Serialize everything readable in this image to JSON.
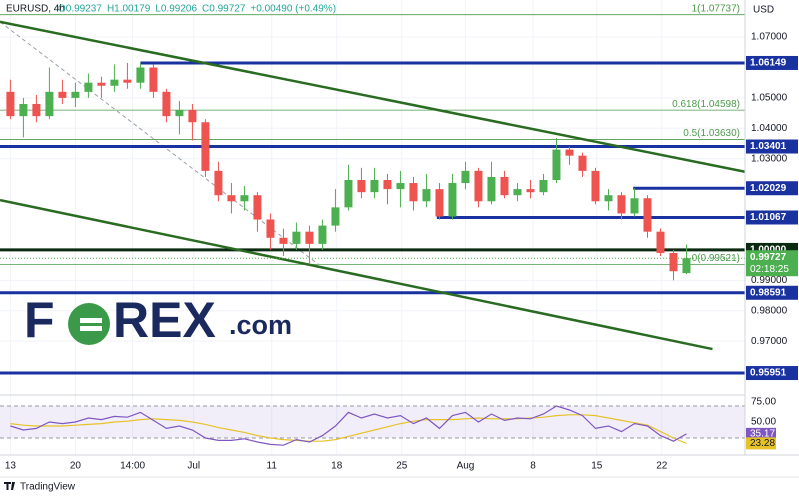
{
  "chart_data": {
    "type": "candlestick",
    "symbol": "EURUSD, 4h",
    "header_values": [
      "O0.99237",
      "H1.00179",
      "L0.99206",
      "C0.99727",
      "+0.00490 (+0.49%)"
    ],
    "currency": "USD",
    "brand": "TradingView",
    "logo": [
      "F",
      "REX",
      ".com"
    ],
    "xlim": [
      -0.8,
      56.5
    ],
    "xticks": [
      {
        "value": 0,
        "label": "13"
      },
      {
        "value": 5,
        "label": "20"
      },
      {
        "value": 9.4,
        "label": "14:00"
      },
      {
        "value": 14.1,
        "label": "Jul"
      },
      {
        "value": 20.1,
        "label": "11"
      },
      {
        "value": 25.1,
        "label": "18"
      },
      {
        "value": 30.1,
        "label": "25"
      },
      {
        "value": 35,
        "label": "Aug"
      },
      {
        "value": 40.2,
        "label": "8"
      },
      {
        "value": 45.1,
        "label": "15"
      },
      {
        "value": 50.1,
        "label": "22"
      }
    ],
    "ylim": [
      0.9513,
      1.0822
    ],
    "yticks": [
      {
        "value": 1.07,
        "label": "1.07000"
      },
      {
        "value": 1.05,
        "label": "1.05000"
      },
      {
        "value": 1.04,
        "label": "1.04000"
      },
      {
        "value": 1.03,
        "label": "1.03000"
      },
      {
        "value": 0.99,
        "label": "0.99000"
      },
      {
        "value": 0.98,
        "label": "0.98000"
      },
      {
        "value": 0.97,
        "label": "0.97000"
      }
    ],
    "grid": true,
    "up_color": "#4caf50",
    "down_color": "#ef5350",
    "open": [
      1.052,
      1.044,
      1.048,
      1.044,
      1.052,
      1.05,
      1.052,
      1.055,
      1.054,
      1.056,
      1.055,
      1.06,
      1.052,
      1.044,
      1.046,
      1.042,
      1.026,
      1.018,
      1.016,
      1.018,
      1.01,
      1.004,
      1.002,
      1.006,
      1.002,
      1.008,
      1.014,
      1.023,
      1.019,
      1.023,
      1.02,
      1.022,
      1.016,
      1.02,
      1.011,
      1.022,
      1.026,
      1.016,
      1.024,
      1.018,
      1.02,
      1.019,
      1.023,
      1.033,
      1.031,
      1.026,
      1.016,
      1.018,
      1.012,
      1.017,
      1.006,
      0.999,
      0.99237
    ],
    "high": [
      1.056,
      1.05,
      1.051,
      1.06,
      1.056,
      1.055,
      1.058,
      1.057,
      1.061,
      1.0615,
      1.0615,
      1.061,
      1.053,
      1.049,
      1.048,
      1.043,
      1.029,
      1.022,
      1.021,
      1.019,
      1.012,
      1.007,
      1.009,
      1.008,
      1.01,
      1.02,
      1.028,
      1.027,
      1.027,
      1.025,
      1.026,
      1.024,
      1.025,
      1.022,
      1.025,
      1.029,
      1.027,
      1.029,
      1.026,
      1.022,
      1.023,
      1.025,
      1.0368,
      1.034,
      1.032,
      1.027,
      1.02,
      1.019,
      1.0203,
      1.018,
      1.007,
      1.0,
      1.00179
    ],
    "low": [
      1.043,
      1.037,
      1.042,
      1.043,
      1.048,
      1.047,
      1.05,
      1.05,
      1.052,
      1.053,
      1.053,
      1.05,
      1.042,
      1.038,
      1.036,
      1.024,
      1.016,
      1.012,
      1.013,
      1.006,
      1.0,
      0.998,
      1.0,
      0.9952,
      1.0,
      1.006,
      1.013,
      1.017,
      1.017,
      1.015,
      1.014,
      1.013,
      1.014,
      1.01,
      1.01,
      1.02,
      1.014,
      1.015,
      1.017,
      1.016,
      1.017,
      1.018,
      1.022,
      1.028,
      1.024,
      1.015,
      1.013,
      1.01,
      1.011,
      1.004,
      0.998,
      0.99,
      0.99206
    ],
    "close": [
      1.044,
      1.048,
      1.044,
      1.052,
      1.05,
      1.052,
      1.055,
      1.054,
      1.056,
      1.055,
      1.06,
      1.052,
      1.044,
      1.046,
      1.042,
      1.026,
      1.018,
      1.016,
      1.018,
      1.01,
      1.004,
      1.002,
      1.006,
      1.002,
      1.008,
      1.014,
      1.023,
      1.019,
      1.023,
      1.02,
      1.022,
      1.016,
      1.02,
      1.011,
      1.022,
      1.026,
      1.016,
      1.024,
      1.018,
      1.02,
      1.019,
      1.023,
      1.033,
      1.031,
      1.026,
      1.016,
      1.018,
      1.012,
      1.017,
      1.006,
      0.999,
      0.993,
      0.99727
    ],
    "last_price": {
      "value": 0.99727,
      "label": "0.99727",
      "countdown": "02:18:25",
      "color": "#4caf50"
    },
    "levels": [
      {
        "value": 1.06149,
        "label": "1.06149",
        "from": 10,
        "color": "#1a32a0"
      },
      {
        "value": 1.03401,
        "label": "1.03401",
        "from": -0.8,
        "color": "#1a32a0"
      },
      {
        "value": 1.02029,
        "label": "1.02029",
        "from": 47.9,
        "color": "#1a32a0"
      },
      {
        "value": 1.01067,
        "label": "1.01067",
        "from": 32.8,
        "color": "#1a32a0"
      },
      {
        "value": 1.0,
        "label": "1.00000",
        "from": -0.8,
        "color": "#0b2a12"
      },
      {
        "value": 0.98591,
        "label": "0.98591",
        "from": -0.8,
        "color": "#1a32a0"
      },
      {
        "value": 0.95951,
        "label": "0.95951",
        "from": -0.8,
        "color": "#1a32a0"
      }
    ],
    "fib_levels": [
      {
        "value": 1.07737,
        "label": "1(1.07737)"
      },
      {
        "value": 1.04598,
        "label": "0.618(1.04598)"
      },
      {
        "value": 1.0363,
        "label": "0.5(1.03630)"
      },
      {
        "value": 0.99521,
        "label": "0(0.99521)"
      }
    ],
    "fib_color": "#4c9a4c",
    "trendlines": [
      {
        "x": [
          -0.8,
          56.5
        ],
        "y": [
          1.075,
          1.0257
        ],
        "color": "#2a6b22"
      },
      {
        "x": [
          -0.8,
          54
        ],
        "y": [
          1.0164,
          0.9674
        ],
        "color": "#2a6b22"
      }
    ],
    "dashed_line": {
      "x": [
        -0.8,
        23.7
      ],
      "y": [
        1.075,
        0.9952
      ],
      "color": "#9aa0a8"
    },
    "rsi": {
      "ylim": [
        8.75,
        81.25
      ],
      "yticks": [
        {
          "value": 75,
          "label": "75.00"
        },
        {
          "value": 50,
          "label": "50.00"
        }
      ],
      "bands": [
        70,
        30
      ],
      "color": "#7e57c2",
      "ma_color": "#e6c229",
      "values": [
        45,
        40,
        42,
        50,
        48,
        50,
        55,
        53,
        57,
        56,
        62,
        52,
        42,
        45,
        40,
        30,
        27,
        27,
        29,
        25,
        22,
        21,
        28,
        25,
        33,
        45,
        62,
        55,
        60,
        55,
        58,
        48,
        55,
        42,
        58,
        62,
        50,
        60,
        52,
        55,
        54,
        60,
        70,
        65,
        58,
        42,
        45,
        38,
        48,
        45,
        33,
        26,
        35.17
      ],
      "ma": [
        48,
        46,
        45,
        45,
        45,
        46,
        47,
        48,
        50,
        51,
        53,
        54,
        53,
        52,
        50,
        47,
        43,
        40,
        37,
        33,
        30,
        28,
        27,
        26,
        26,
        28,
        32,
        36,
        40,
        44,
        48,
        51,
        53,
        53,
        53,
        54,
        55,
        54,
        54,
        54,
        55,
        56,
        58,
        59,
        59,
        58,
        55,
        52,
        49,
        46,
        38,
        30,
        23.28
      ],
      "value_label": "35.17",
      "ma_label": "23.28"
    }
  }
}
